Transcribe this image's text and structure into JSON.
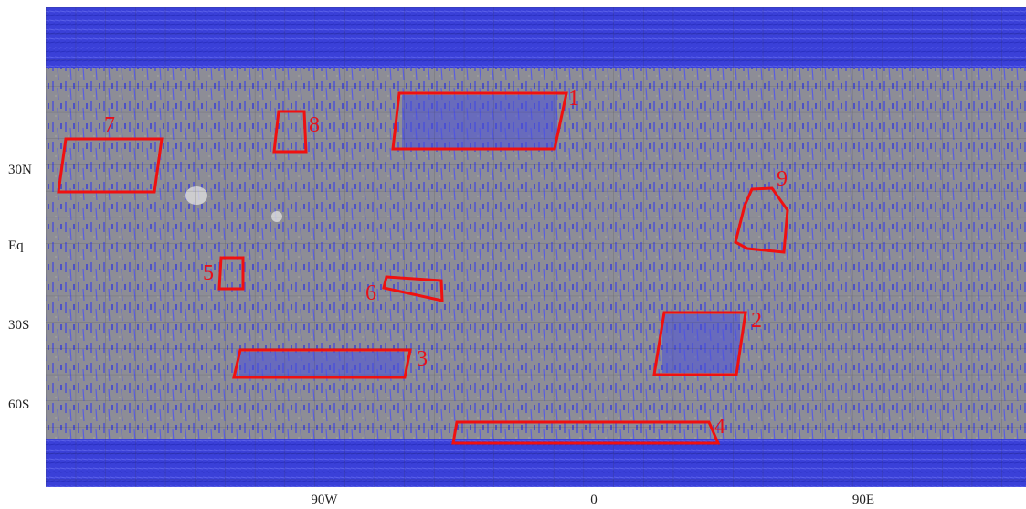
{
  "map": {
    "lat_labels": [
      "30N",
      "Eq",
      "30S",
      "60S"
    ],
    "lon_labels": [
      "90W",
      "0",
      "90E"
    ],
    "regions": [
      "1",
      "2",
      "3",
      "4",
      "5",
      "6",
      "7",
      "8",
      "9"
    ]
  }
}
